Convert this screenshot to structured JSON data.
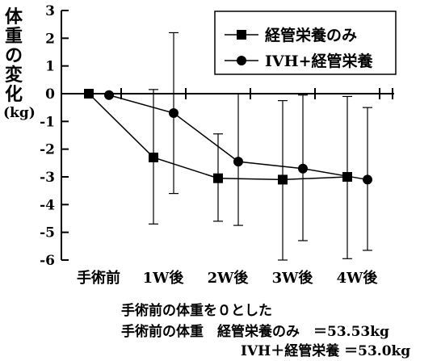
{
  "chart_data": {
    "type": "line",
    "title": "",
    "ylabel": "体重の変化",
    "yunit": "(kg)",
    "xlabel": "",
    "categories": [
      "手術前",
      "1W後",
      "2W後",
      "3W後",
      "4W後"
    ],
    "ylim": [
      -6,
      3
    ],
    "yticks": [
      3,
      2,
      1,
      0,
      -1,
      -2,
      -3,
      -4,
      -5,
      -6
    ],
    "grid": false,
    "legend": "top-right",
    "series": [
      {
        "name": "経管栄養のみ",
        "marker": "square",
        "values": [
          0,
          -2.3,
          -3.05,
          -3.1,
          -3.0
        ],
        "err_low": [
          0,
          -4.7,
          -4.6,
          -6.0,
          -5.95
        ],
        "err_high": [
          0,
          0.15,
          -1.45,
          -0.25,
          -0.1
        ]
      },
      {
        "name": "IVH+経管栄養",
        "marker": "circle",
        "values": [
          -0.05,
          -0.7,
          -2.45,
          -2.7,
          -3.1
        ],
        "err_low": [
          -0.05,
          -3.6,
          -4.75,
          -5.3,
          -5.65
        ],
        "err_high": [
          -0.05,
          2.2,
          0,
          -0.05,
          -0.5
        ]
      }
    ]
  },
  "notes": {
    "line1": "手術前の体重を０とした",
    "line2": "手術前の体重　経管栄養のみ　＝53.53kg",
    "line3": "IVH＋経管栄養 ＝53.0kg"
  },
  "colors": {
    "ink": "#000000"
  }
}
